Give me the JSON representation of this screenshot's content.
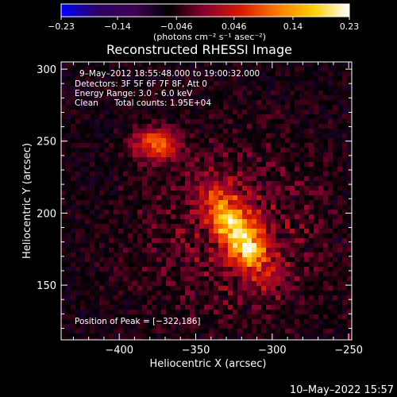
{
  "chart_data": {
    "type": "heatmap",
    "title": "Reconstructed RHESSI Image",
    "xlabel": "Heliocentric X (arcsec)",
    "ylabel": "Heliocentric Y (arcsec)",
    "xlim": [
      -438,
      -248
    ],
    "ylim": [
      112,
      305
    ],
    "x_ticks": [
      -400,
      -350,
      -300,
      -250
    ],
    "x_tick_labels": [
      "−400",
      "−350",
      "−300",
      "−250"
    ],
    "y_ticks": [
      150,
      200,
      250,
      300
    ],
    "y_tick_labels": [
      "150",
      "200",
      "250",
      "300"
    ],
    "colorbar": {
      "min": -0.23,
      "max": 0.23,
      "ticks": [
        -0.23,
        -0.14,
        -0.046,
        0.046,
        0.14,
        0.23
      ],
      "tick_labels": [
        "−0.23",
        "−0.14",
        "−0.046",
        "0.046",
        "0.14",
        "0.23"
      ],
      "colors": [
        "#0000ff",
        "#2a0066",
        "#400055",
        "#000000",
        "#8a0030",
        "#d81a00",
        "#ff7a00",
        "#ffd000",
        "#ffffff"
      ],
      "units": "(photons cm⁻² s⁻¹ asec⁻²)"
    },
    "annotations": [
      "9–May–2012 18:55:48.000 to 19:00:32.000",
      "Detectors: 3F 5F 6F 7F 8F, Att 0",
      "Energy Range: 3.0 – 6.0 keV",
      "Clean",
      "Total counts: 1.95E+04"
    ],
    "peak_label": "Position of Peak = [−322,186]",
    "peak": [
      -322,
      186
    ],
    "sources": [
      {
        "x": -322,
        "y": 186,
        "sx": 9,
        "sy": 22,
        "angle": -30,
        "amp": 0.23
      },
      {
        "x": -376,
        "y": 248,
        "sx": 10,
        "sy": 8,
        "angle": 0,
        "amp": 0.15
      }
    ],
    "background_level": -0.06
  },
  "footer": {
    "timestamp": "10–May–2022 15:57"
  }
}
